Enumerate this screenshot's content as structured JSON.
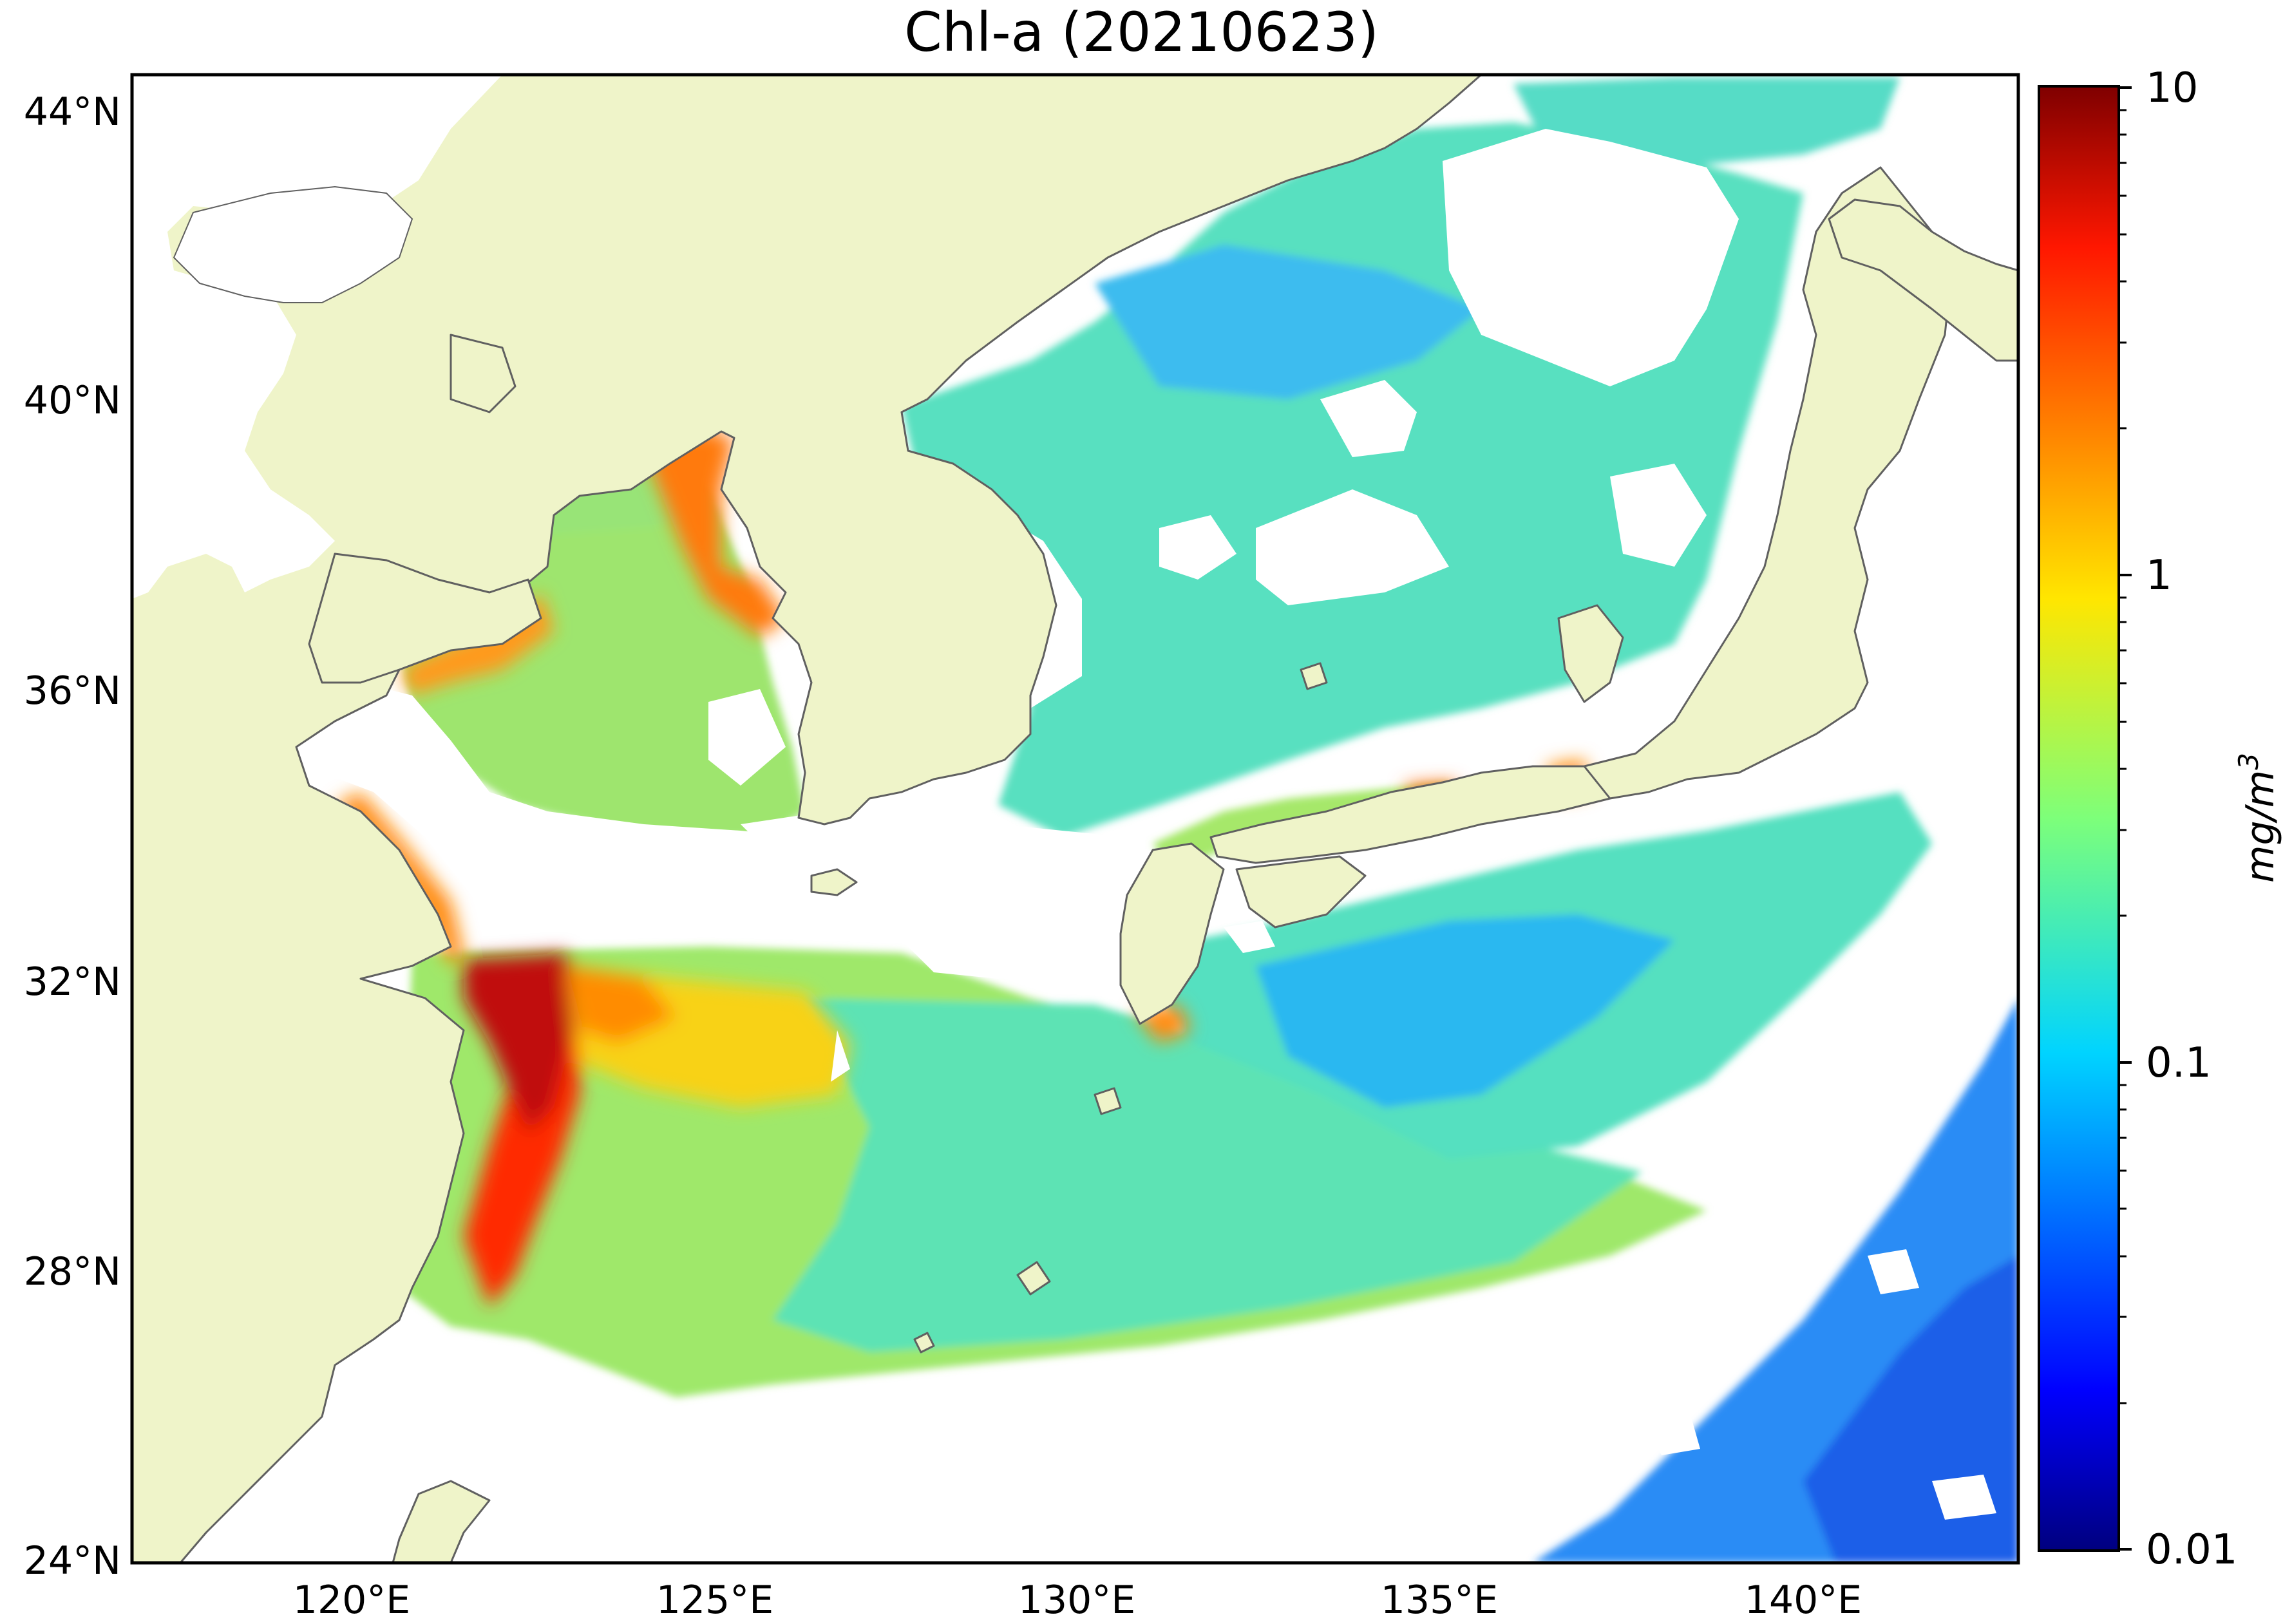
{
  "title": "Chl-a (20210623)",
  "map": {
    "lat_labels": [
      "44°N",
      "40°N",
      "36°N",
      "32°N",
      "28°N",
      "24°N"
    ],
    "lon_labels": [
      "120°E",
      "125°E",
      "130°E",
      "135°E",
      "140°E"
    ],
    "extent": {
      "lon": [
        117,
        143
      ],
      "lat": [
        24,
        44.5
      ]
    },
    "land_color": "#eff4c9",
    "coast_color": "#606060",
    "nodata_color": "#ffffff"
  },
  "colorbar": {
    "ticks": [
      "10",
      "1",
      "0.1",
      "0.01"
    ],
    "unit": "mg/m",
    "unit_sup": "3",
    "scale": "log",
    "range": [
      0.01,
      10
    ],
    "colormap": "jet"
  }
}
